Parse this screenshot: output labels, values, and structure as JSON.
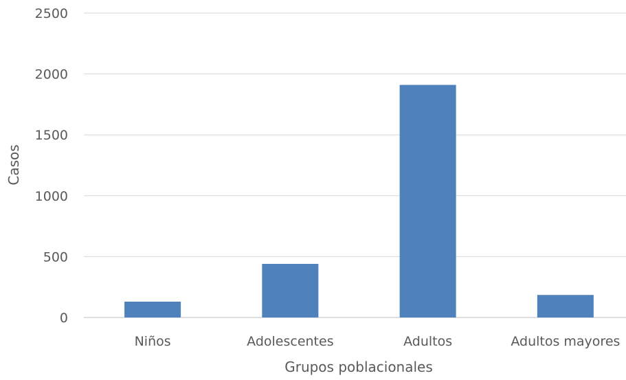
{
  "chart_data": {
    "type": "bar",
    "title": "",
    "xlabel": "Grupos poblacionales",
    "ylabel": "Casos",
    "categories": [
      "Niños",
      "Adolescentes",
      "Adultos",
      "Adultos mayores"
    ],
    "values": [
      130,
      440,
      1910,
      185
    ],
    "ylim": [
      0,
      2500
    ],
    "yticks": [
      0,
      500,
      1000,
      1500,
      2000,
      2500
    ],
    "grid": true,
    "legend": "none",
    "colors": {
      "bar": "#4F81BD",
      "grid": "#D9D9D9",
      "axis": "#BFBFBF",
      "text": "#595959"
    }
  }
}
